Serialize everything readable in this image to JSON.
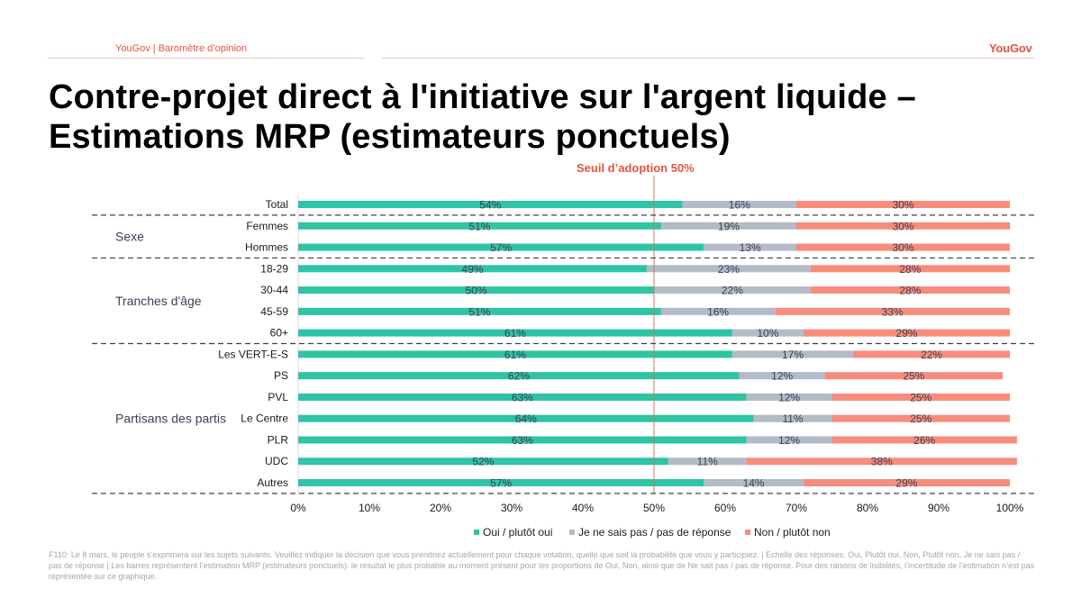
{
  "header": {
    "left_label": "YouGov | Baromètre d’opinion",
    "logo": "YouGov"
  },
  "title": "Contre-projet direct à l'initiative sur l'argent liquide – Estimations MRP (estimateurs ponctuels)",
  "colors": {
    "oui": "#2ec4a4",
    "nsp": "#b4bac8",
    "non": "#f88c7c",
    "threshold": "#e4543e",
    "accent": "#e4543e"
  },
  "chart_data": {
    "type": "bar",
    "orientation": "horizontal-stacked-100",
    "title": "Contre-projet direct à l'initiative sur l'argent liquide – Estimations MRP (estimateurs ponctuels)",
    "annotation": "Seuil d’adoption 50%",
    "threshold_value": 50,
    "xlim": [
      0,
      100
    ],
    "x_ticks": [
      "0%",
      "10%",
      "20%",
      "30%",
      "40%",
      "50%",
      "60%",
      "70%",
      "80%",
      "90%",
      "100%"
    ],
    "legend_position": "bottom",
    "groups": [
      {
        "label": "",
        "rows": [
          "Total"
        ]
      },
      {
        "label": "Sexe",
        "rows": [
          "Femmes",
          "Hommes"
        ]
      },
      {
        "label": "Tranches d'âge",
        "rows": [
          "18-29",
          "30-44",
          "45-59",
          "60+"
        ]
      },
      {
        "label": "Partisans des partis",
        "rows": [
          "Les VERT-E-S",
          "PS",
          "PVL",
          "Le Centre",
          "PLR",
          "UDC",
          "Autres"
        ]
      }
    ],
    "categories": [
      "Total",
      "Femmes",
      "Hommes",
      "18-29",
      "30-44",
      "45-59",
      "60+",
      "Les VERT-E-S",
      "PS",
      "PVL",
      "Le Centre",
      "PLR",
      "UDC",
      "Autres"
    ],
    "series": [
      {
        "name": "Oui / plutôt oui",
        "values": [
          54,
          51,
          57,
          49,
          50,
          51,
          61,
          61,
          62,
          63,
          64,
          63,
          52,
          57
        ]
      },
      {
        "name": "Je ne sais pas / pas de réponse",
        "values": [
          16,
          19,
          13,
          23,
          22,
          16,
          10,
          17,
          12,
          12,
          11,
          12,
          11,
          14
        ]
      },
      {
        "name": "Non / plutôt non",
        "values": [
          30,
          30,
          30,
          28,
          28,
          33,
          29,
          22,
          25,
          25,
          25,
          26,
          38,
          29
        ]
      }
    ]
  },
  "footnote": "F110: Le 8 mars, le peuple s’exprimera sur les sujets suivants. Veuillez indiquer la décision que vous prendriez actuellement pour chaque votation, quelle que soit la probabilité que vous y participiez. | Echelle des réponses: Oui, Plutôt oui, Non, Plutôt non, Je ne sais pas / pas de réponse | Les barres représentent l’estimation MRP (estimateurs ponctuels): le résultat le plus probable au moment présent pour les proportions de Oui, Non, ainsi que de Ne sait pas / pas de réponse. Pour des raisons de lisibilités, l’incertitude de l’estimation n’est pas représentée sur ce graphique."
}
